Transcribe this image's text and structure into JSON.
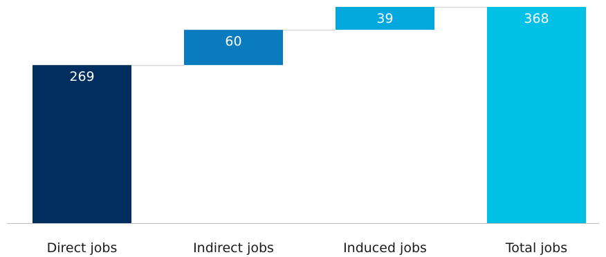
{
  "chart_data": {
    "type": "bar",
    "subtype": "waterfall",
    "title": "",
    "xlabel": "",
    "ylabel": "",
    "categories": [
      "Direct jobs",
      "Indirect jobs",
      "Induced jobs",
      "Total jobs"
    ],
    "values": [
      269,
      60,
      39,
      368
    ],
    "data_labels": [
      "269",
      "60",
      "39",
      "368"
    ],
    "bar_kinds": [
      "total",
      "increment",
      "increment",
      "total"
    ],
    "colors": [
      "#002e5e",
      "#0a7bbd",
      "#00a8dd",
      "#00c0e6"
    ],
    "connector_color": "#d9d9d9",
    "axis_color": "#bfbfbf",
    "ylim": [
      0,
      368
    ],
    "grid": false,
    "legend": "none"
  }
}
